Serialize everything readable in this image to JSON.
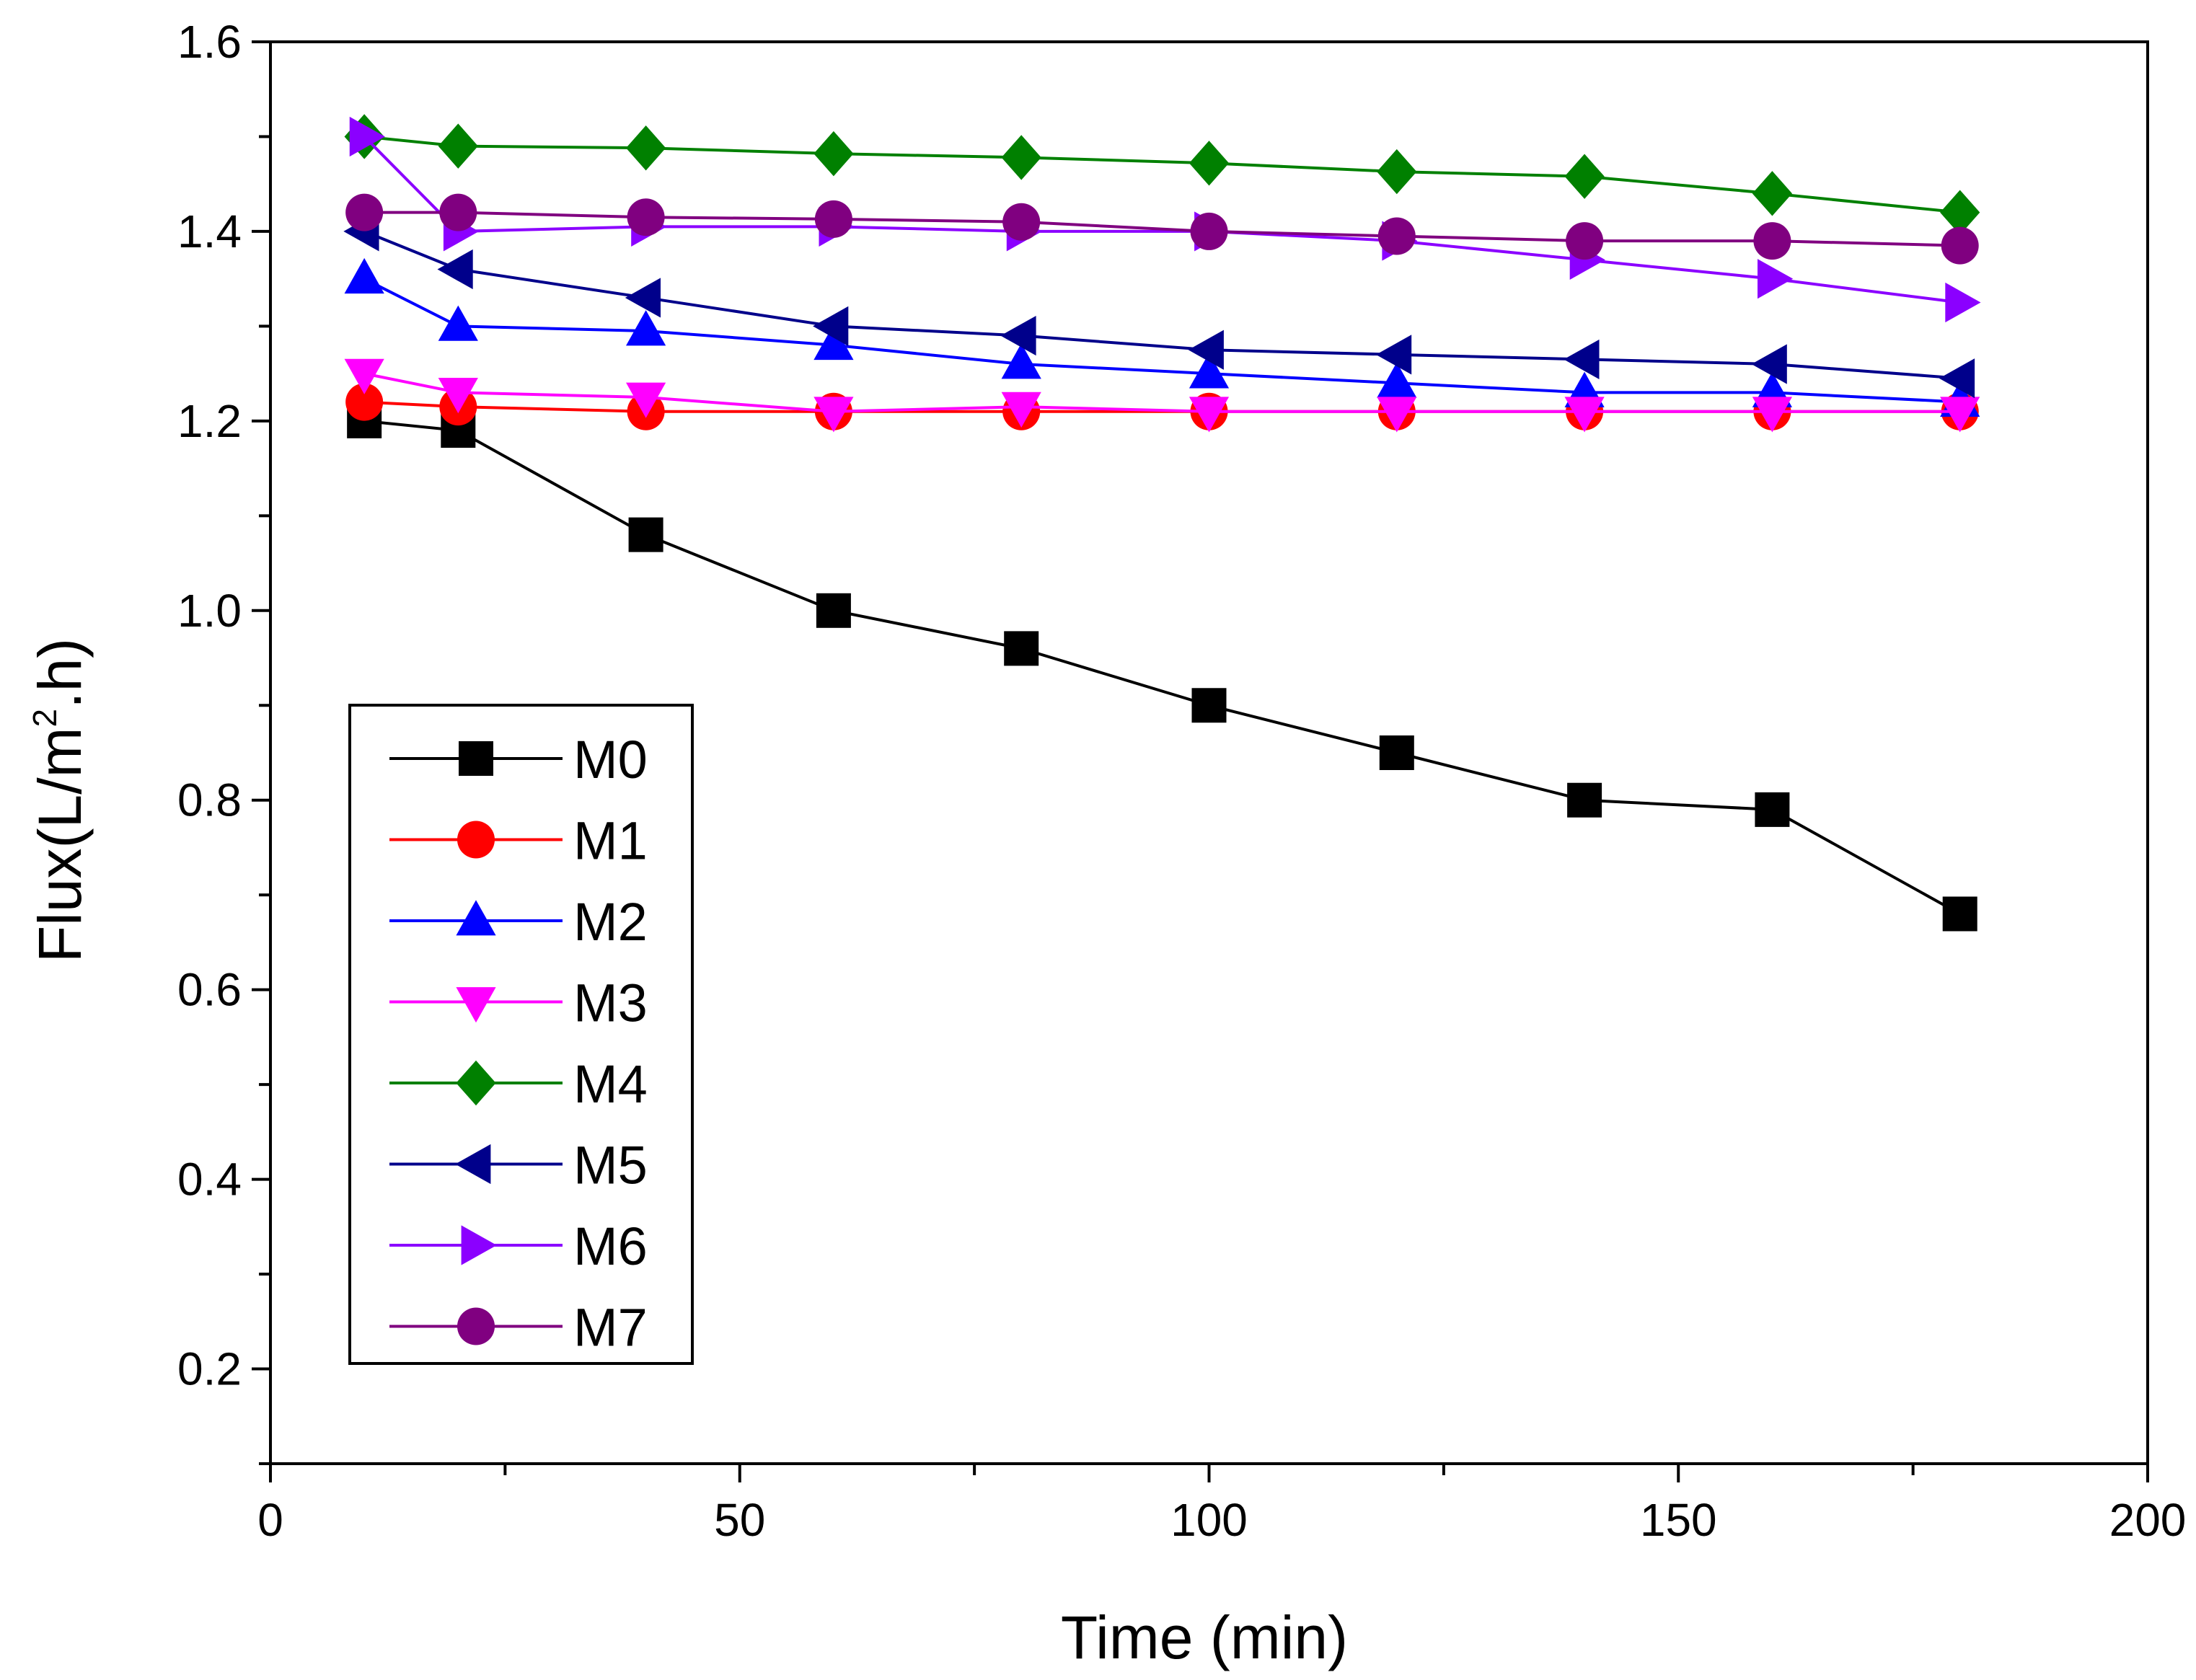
{
  "chart_data": {
    "type": "line",
    "title": "",
    "xlabel": "Time (min)",
    "ylabel": {
      "prefix": "Flux(L/m",
      "sup": "2",
      "suffix": ".h)"
    },
    "xlim": [
      0,
      200
    ],
    "ylim": [
      0.1,
      1.6
    ],
    "xticks": [
      0,
      50,
      100,
      150,
      200
    ],
    "yticks": [
      0.2,
      0.4,
      0.6,
      0.8,
      1.0,
      1.2,
      1.4,
      1.6
    ],
    "xtick_labels": [
      "0",
      "50",
      "100",
      "150",
      "200"
    ],
    "ytick_labels": [
      "0.2",
      "0.4",
      "0.6",
      "0.8",
      "1.0",
      "1.2",
      "1.4",
      "1.6"
    ],
    "grid": false,
    "legend_position": "center-left",
    "x": [
      10,
      20,
      40,
      60,
      80,
      100,
      120,
      140,
      160,
      180
    ],
    "series": [
      {
        "name": "M0",
        "color": "#000000",
        "marker": "square",
        "values": [
          1.2,
          1.19,
          1.08,
          1.0,
          0.96,
          0.9,
          0.85,
          0.8,
          0.79,
          0.68
        ]
      },
      {
        "name": "M1",
        "color": "#ff0000",
        "marker": "circle",
        "values": [
          1.22,
          1.215,
          1.21,
          1.21,
          1.21,
          1.21,
          1.21,
          1.21,
          1.21,
          1.21
        ]
      },
      {
        "name": "M2",
        "color": "#0000ff",
        "marker": "triangle-up",
        "values": [
          1.35,
          1.3,
          1.295,
          1.28,
          1.26,
          1.25,
          1.24,
          1.23,
          1.23,
          1.22
        ]
      },
      {
        "name": "M3",
        "color": "#ff00ff",
        "marker": "triangle-down",
        "values": [
          1.25,
          1.23,
          1.225,
          1.21,
          1.215,
          1.21,
          1.21,
          1.21,
          1.21,
          1.21
        ]
      },
      {
        "name": "M4",
        "color": "#008000",
        "marker": "diamond",
        "values": [
          1.5,
          1.49,
          1.488,
          1.482,
          1.478,
          1.472,
          1.463,
          1.458,
          1.44,
          1.42
        ]
      },
      {
        "name": "M5",
        "color": "#00008b",
        "marker": "triangle-left",
        "values": [
          1.4,
          1.36,
          1.33,
          1.3,
          1.29,
          1.275,
          1.27,
          1.265,
          1.26,
          1.245
        ]
      },
      {
        "name": "M6",
        "color": "#8b00ff",
        "marker": "triangle-right",
        "values": [
          1.5,
          1.4,
          1.405,
          1.405,
          1.4,
          1.4,
          1.39,
          1.37,
          1.35,
          1.325
        ]
      },
      {
        "name": "M7",
        "color": "#800080",
        "marker": "circle",
        "values": [
          1.42,
          1.42,
          1.415,
          1.413,
          1.41,
          1.4,
          1.395,
          1.39,
          1.39,
          1.385
        ]
      }
    ]
  }
}
